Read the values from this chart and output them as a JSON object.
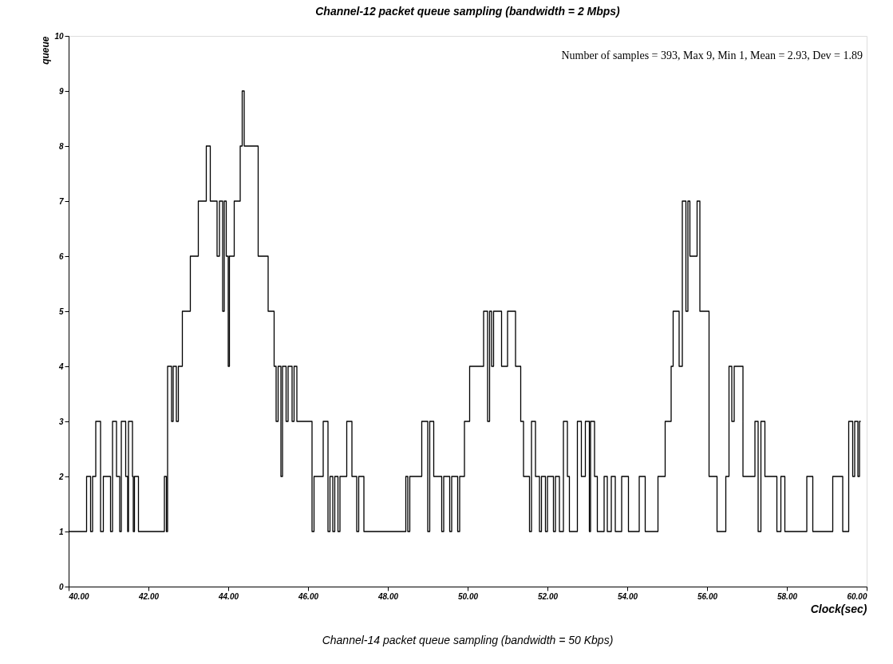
{
  "chart_data": {
    "type": "step",
    "title": "Channel-12 packet queue sampling (bandwidth = 2 Mbps)",
    "xlabel": "Clock(sec)",
    "ylabel": "queue",
    "annotations": [
      "Number of samples = 393, Max 9, Min 1, Mean = 2.93, Dev = 1.89",
      "Channel-14 packet queue sampling (bandwidth = 50 Kbps)"
    ],
    "xlim": [
      40,
      60
    ],
    "ylim": [
      0,
      10
    ],
    "xticks": [
      {
        "value": 40,
        "label": "40.00"
      },
      {
        "value": 42,
        "label": "42.00"
      },
      {
        "value": 44,
        "label": "44.00"
      },
      {
        "value": 46,
        "label": "46.00"
      },
      {
        "value": 48,
        "label": "48.00"
      },
      {
        "value": 50,
        "label": "50.00"
      },
      {
        "value": 52,
        "label": "52.00"
      },
      {
        "value": 54,
        "label": "54.00"
      },
      {
        "value": 56,
        "label": "56.00"
      },
      {
        "value": 58,
        "label": "58.00"
      },
      {
        "value": 60,
        "label": "60.00"
      }
    ],
    "yticks": [
      0,
      1,
      2,
      3,
      4,
      5,
      6,
      7,
      8,
      9,
      10
    ],
    "grid": false,
    "marker": "none",
    "line_style": "solid",
    "series": [
      {
        "color": "#000000",
        "x": [
          40.0,
          40.45,
          40.55,
          40.6,
          40.68,
          40.8,
          40.87,
          41.05,
          41.1,
          41.2,
          41.28,
          41.32,
          41.43,
          41.48,
          41.5,
          41.6,
          41.62,
          41.65,
          41.75,
          42.4,
          42.45,
          42.48,
          42.58,
          42.62,
          42.7,
          42.75,
          42.85,
          43.05,
          43.25,
          43.45,
          43.55,
          43.72,
          43.78,
          43.86,
          43.9,
          43.95,
          44.0,
          44.03,
          44.15,
          44.3,
          44.35,
          44.4,
          44.75,
          45.0,
          45.15,
          45.2,
          45.25,
          45.32,
          45.36,
          45.45,
          45.5,
          45.6,
          45.65,
          45.72,
          46.1,
          46.15,
          46.38,
          46.5,
          46.55,
          46.62,
          46.67,
          46.75,
          46.8,
          46.97,
          47.1,
          47.22,
          47.27,
          47.4,
          48.45,
          48.5,
          48.55,
          48.85,
          49.0,
          49.05,
          49.15,
          49.35,
          49.4,
          49.55,
          49.6,
          49.75,
          49.8,
          49.92,
          50.05,
          50.4,
          50.5,
          50.55,
          50.6,
          50.65,
          50.85,
          51.0,
          51.2,
          51.33,
          51.4,
          51.55,
          51.6,
          51.7,
          51.8,
          51.85,
          51.95,
          52.0,
          52.15,
          52.2,
          52.3,
          52.4,
          52.5,
          52.55,
          52.75,
          52.85,
          52.95,
          53.05,
          53.08,
          53.18,
          53.25,
          53.42,
          53.5,
          53.6,
          53.7,
          53.86,
          54.03,
          54.3,
          54.45,
          54.77,
          54.95,
          55.1,
          55.15,
          55.3,
          55.38,
          55.47,
          55.52,
          55.57,
          55.75,
          55.82,
          56.05,
          56.25,
          56.47,
          56.55,
          56.62,
          56.68,
          56.9,
          57.2,
          57.28,
          57.35,
          57.45,
          57.75,
          57.85,
          57.95,
          58.5,
          58.65,
          59.15,
          59.4,
          59.55,
          59.65,
          59.7,
          59.78,
          59.82,
          59.85
        ],
        "values": [
          1,
          2,
          1,
          2,
          3,
          1,
          2,
          1,
          3,
          2,
          1,
          3,
          2,
          1,
          3,
          2,
          1,
          2,
          1,
          2,
          1,
          4,
          3,
          4,
          3,
          4,
          5,
          6,
          7,
          8,
          7,
          6,
          7,
          5,
          7,
          6,
          4,
          6,
          7,
          8,
          9,
          8,
          6,
          5,
          4,
          3,
          4,
          2,
          4,
          3,
          4,
          3,
          4,
          3,
          1,
          2,
          3,
          1,
          2,
          1,
          2,
          1,
          2,
          3,
          2,
          1,
          2,
          1,
          2,
          1,
          2,
          3,
          1,
          3,
          2,
          1,
          2,
          1,
          2,
          1,
          2,
          3,
          4,
          5,
          3,
          5,
          4,
          5,
          4,
          5,
          4,
          3,
          2,
          1,
          3,
          2,
          1,
          2,
          1,
          2,
          1,
          2,
          1,
          3,
          2,
          1,
          3,
          2,
          3,
          1,
          3,
          2,
          1,
          2,
          1,
          2,
          1,
          2,
          1,
          2,
          1,
          2,
          3,
          4,
          5,
          4,
          7,
          5,
          7,
          6,
          7,
          5,
          2,
          1,
          2,
          4,
          3,
          4,
          2,
          3,
          1,
          3,
          2,
          1,
          2,
          1,
          2,
          1,
          2,
          1,
          3,
          2,
          3,
          2,
          3,
          3
        ]
      }
    ]
  }
}
